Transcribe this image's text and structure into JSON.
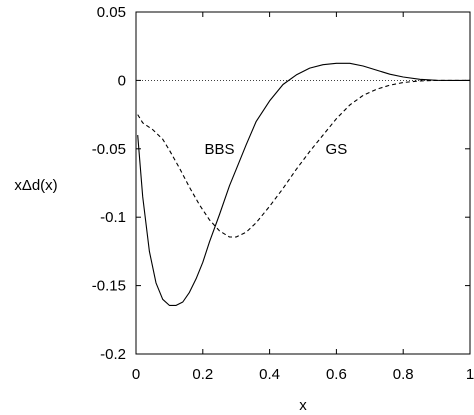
{
  "chart_data": {
    "type": "line",
    "title": "",
    "xlabel": "x",
    "ylabel": "xΔd(x)",
    "xlim": [
      0,
      1
    ],
    "ylim": [
      -0.2,
      0.05
    ],
    "xticks": [
      0,
      0.2,
      0.4,
      0.6,
      0.8,
      1
    ],
    "xtick_labels": [
      "0",
      "0.2",
      "0.4",
      "0.6",
      "0.8",
      "1"
    ],
    "yticks": [
      0.05,
      0,
      -0.05,
      -0.1,
      -0.15,
      -0.2
    ],
    "ytick_labels": [
      "0.05",
      "0",
      "-0.05",
      "-0.1",
      "-0.15",
      "-0.2"
    ],
    "grid": false,
    "legend": "none",
    "reference_line": {
      "y": 0,
      "style": "dotted"
    },
    "series": [
      {
        "name": "BBS",
        "style": "solid",
        "label_at": {
          "x": 0.25,
          "y": -0.05
        },
        "points": [
          [
            0.005,
            -0.04
          ],
          [
            0.02,
            -0.085
          ],
          [
            0.04,
            -0.125
          ],
          [
            0.06,
            -0.148
          ],
          [
            0.08,
            -0.16
          ],
          [
            0.1,
            -0.1645
          ],
          [
            0.12,
            -0.1645
          ],
          [
            0.14,
            -0.162
          ],
          [
            0.16,
            -0.155
          ],
          [
            0.18,
            -0.145
          ],
          [
            0.2,
            -0.133
          ],
          [
            0.22,
            -0.118
          ],
          [
            0.25,
            -0.098
          ],
          [
            0.28,
            -0.077
          ],
          [
            0.3,
            -0.065
          ],
          [
            0.33,
            -0.047
          ],
          [
            0.36,
            -0.03
          ],
          [
            0.4,
            -0.015
          ],
          [
            0.44,
            -0.003
          ],
          [
            0.48,
            0.004
          ],
          [
            0.52,
            0.009
          ],
          [
            0.56,
            0.0115
          ],
          [
            0.6,
            0.0125
          ],
          [
            0.64,
            0.0125
          ],
          [
            0.68,
            0.0105
          ],
          [
            0.72,
            0.0075
          ],
          [
            0.76,
            0.0045
          ],
          [
            0.8,
            0.0025
          ],
          [
            0.85,
            0.0008
          ],
          [
            0.9,
            0.0001
          ],
          [
            0.95,
            0.0
          ],
          [
            1.0,
            0.0
          ]
        ]
      },
      {
        "name": "GS",
        "style": "dashed",
        "label_at": {
          "x": 0.6,
          "y": -0.05
        },
        "points": [
          [
            0.005,
            -0.025
          ],
          [
            0.02,
            -0.031
          ],
          [
            0.05,
            -0.036
          ],
          [
            0.08,
            -0.043
          ],
          [
            0.1,
            -0.051
          ],
          [
            0.13,
            -0.064
          ],
          [
            0.16,
            -0.078
          ],
          [
            0.19,
            -0.091
          ],
          [
            0.22,
            -0.102
          ],
          [
            0.25,
            -0.11
          ],
          [
            0.28,
            -0.1145
          ],
          [
            0.3,
            -0.1145
          ],
          [
            0.33,
            -0.111
          ],
          [
            0.36,
            -0.104
          ],
          [
            0.4,
            -0.092
          ],
          [
            0.44,
            -0.079
          ],
          [
            0.48,
            -0.065
          ],
          [
            0.52,
            -0.052
          ],
          [
            0.56,
            -0.04
          ],
          [
            0.6,
            -0.028
          ],
          [
            0.64,
            -0.018
          ],
          [
            0.68,
            -0.011
          ],
          [
            0.72,
            -0.0065
          ],
          [
            0.76,
            -0.0035
          ],
          [
            0.8,
            -0.0015
          ],
          [
            0.85,
            -0.0004
          ],
          [
            0.9,
            0.0
          ],
          [
            1.0,
            0.0
          ]
        ]
      }
    ]
  }
}
